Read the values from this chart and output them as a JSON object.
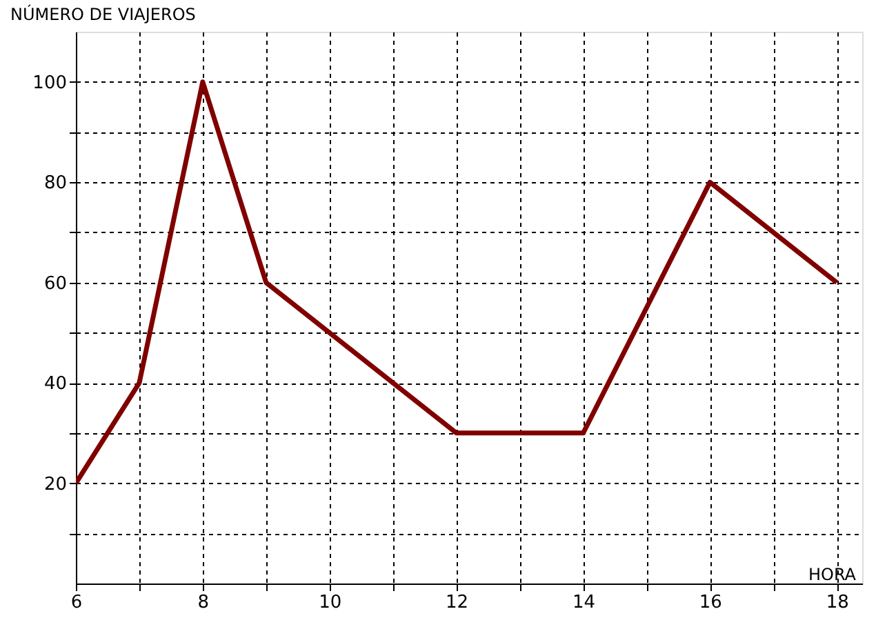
{
  "chart_data": {
    "type": "line",
    "xlabel": "HORA",
    "ylabel": "NÚMERO DE VIAJEROS",
    "x": [
      6,
      7,
      8,
      9,
      12,
      14,
      16,
      18
    ],
    "series": [
      {
        "color": "#800000",
        "values": [
          20,
          40,
          100,
          60,
          30,
          30,
          80,
          60
        ]
      }
    ],
    "xlim": [
      6,
      18.4
    ],
    "ylim": [
      0,
      110
    ],
    "xticks": [
      6,
      {
        "value": 7,
        "label": null
      },
      8,
      {
        "value": 9,
        "label": null
      },
      10,
      {
        "value": 11,
        "label": null
      },
      12,
      {
        "value": 13,
        "label": null
      },
      14,
      {
        "value": 15,
        "label": null
      },
      16,
      {
        "value": 17,
        "label": null
      },
      18
    ],
    "yticks": [
      {
        "value": 10,
        "label": null
      },
      20,
      {
        "value": 30,
        "label": null
      },
      40,
      {
        "value": 50,
        "label": null
      },
      60,
      {
        "value": 70,
        "label": null
      },
      80,
      {
        "value": 90,
        "label": null
      },
      100
    ],
    "grid": true,
    "marker": "none",
    "line_style": "solid"
  }
}
